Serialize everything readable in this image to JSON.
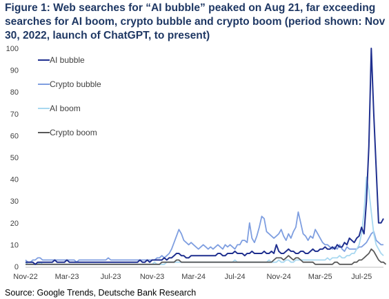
{
  "figure": {
    "title": "Figure 1: Web searches for “AI bubble” peaked on Aug 21, far exceeding searches for AI boom, crypto bubble and crypto boom (period shown: Nov 30, 2022, launch of ChatGPT, to present)",
    "source": "Source: Google Trends, Deutsche Bank Research"
  },
  "colors": {
    "ai_bubble": "#1f2f8f",
    "crypto_bubble": "#7e9ee0",
    "ai_boom": "#a8d8f0",
    "crypto_boom": "#595959",
    "axis": "#bfbfbf",
    "tick_text": "#404040"
  },
  "chart_data": {
    "type": "line",
    "title": "",
    "xlabel": "",
    "ylabel": "",
    "ylim": [
      0,
      100
    ],
    "yticks": [
      0,
      10,
      20,
      30,
      40,
      50,
      60,
      70,
      80,
      90,
      100
    ],
    "xtick_labels": [
      "Nov-22",
      "Mar-23",
      "Jul-23",
      "Nov-23",
      "Mar-24",
      "Jul-24",
      "Nov-24",
      "Mar-25",
      "Jul-25"
    ],
    "xtick_positions": [
      0,
      17,
      35,
      52,
      69,
      86,
      104,
      121,
      138
    ],
    "grid": false,
    "legend_placement": "top-left",
    "x_start": "2022-11-30",
    "x_step": "weekly",
    "series": [
      {
        "name": "AI bubble",
        "color_key": "ai_bubble",
        "values": [
          2,
          2,
          2,
          2,
          1,
          2,
          2,
          2,
          2,
          2,
          2,
          2,
          3,
          2,
          2,
          2,
          2,
          3,
          2,
          2,
          2,
          2,
          2,
          2,
          2,
          2,
          2,
          2,
          2,
          2,
          2,
          2,
          2,
          2,
          2,
          2,
          2,
          2,
          2,
          2,
          2,
          2,
          2,
          2,
          2,
          2,
          2,
          3,
          2,
          2,
          3,
          2,
          3,
          3,
          3,
          3,
          3,
          4,
          3,
          4,
          4,
          5,
          6,
          6,
          5,
          5,
          4,
          4,
          5,
          5,
          5,
          5,
          5,
          5,
          5,
          5,
          5,
          5,
          5,
          6,
          6,
          5,
          5,
          6,
          6,
          6,
          7,
          6,
          6,
          6,
          5,
          6,
          6,
          7,
          6,
          6,
          6,
          6,
          7,
          6,
          6,
          7,
          6,
          10,
          7,
          6,
          6,
          7,
          8,
          7,
          7,
          6,
          6,
          7,
          7,
          6,
          6,
          7,
          8,
          7,
          7,
          8,
          8,
          9,
          8,
          8,
          9,
          8,
          10,
          9,
          9,
          11,
          10,
          13,
          12,
          11,
          13,
          14,
          18,
          15,
          30,
          55,
          100,
          70,
          45,
          20,
          20,
          22
        ]
      },
      {
        "name": "Crypto bubble",
        "color_key": "crypto_bubble",
        "values": [
          3,
          2,
          2,
          3,
          3,
          4,
          4,
          3,
          3,
          3,
          3,
          3,
          3,
          3,
          3,
          3,
          3,
          3,
          3,
          3,
          3,
          2,
          3,
          3,
          3,
          3,
          3,
          3,
          3,
          3,
          3,
          3,
          3,
          3,
          4,
          3,
          3,
          3,
          3,
          3,
          3,
          3,
          3,
          3,
          3,
          3,
          3,
          3,
          3,
          3,
          3,
          3,
          3,
          3,
          4,
          4,
          5,
          4,
          5,
          6,
          8,
          11,
          14,
          17,
          15,
          12,
          11,
          10,
          11,
          10,
          9,
          8,
          9,
          10,
          9,
          8,
          9,
          8,
          9,
          10,
          9,
          8,
          10,
          9,
          10,
          9,
          8,
          10,
          10,
          12,
          12,
          11,
          20,
          13,
          11,
          14,
          18,
          23,
          22,
          16,
          15,
          14,
          13,
          14,
          15,
          17,
          14,
          12,
          15,
          13,
          16,
          18,
          25,
          20,
          15,
          14,
          12,
          14,
          13,
          17,
          15,
          13,
          11,
          10,
          10,
          9,
          8,
          9,
          8,
          10,
          8,
          7,
          9,
          8,
          8,
          8,
          8,
          9,
          9,
          10,
          11,
          13,
          15,
          16,
          12,
          11,
          10,
          10
        ]
      },
      {
        "name": "AI boom",
        "color_key": "ai_boom",
        "values": [
          2,
          1,
          1,
          1,
          1,
          1,
          2,
          1,
          1,
          1,
          1,
          1,
          1,
          1,
          1,
          1,
          1,
          1,
          1,
          1,
          1,
          1,
          1,
          1,
          1,
          1,
          1,
          1,
          1,
          1,
          1,
          1,
          1,
          1,
          1,
          1,
          1,
          1,
          1,
          1,
          1,
          1,
          1,
          1,
          1,
          1,
          1,
          1,
          1,
          1,
          1,
          1,
          1,
          2,
          1,
          1,
          1,
          1,
          2,
          2,
          2,
          2,
          2,
          2,
          2,
          2,
          2,
          2,
          2,
          2,
          2,
          2,
          2,
          2,
          2,
          2,
          2,
          2,
          2,
          2,
          2,
          2,
          2,
          2,
          2,
          2,
          3,
          2,
          2,
          2,
          2,
          2,
          2,
          2,
          2,
          2,
          2,
          2,
          2,
          2,
          3,
          2,
          2,
          2,
          3,
          2,
          2,
          3,
          3,
          2,
          2,
          3,
          3,
          3,
          3,
          3,
          3,
          3,
          3,
          3,
          3,
          3,
          3,
          3,
          4,
          3,
          4,
          4,
          4,
          5,
          4,
          4,
          5,
          5,
          6,
          6,
          8,
          10,
          15,
          25,
          41,
          35,
          25,
          15,
          10,
          8,
          6,
          5
        ]
      },
      {
        "name": "Crypto boom",
        "color_key": "crypto_boom",
        "values": [
          1,
          1,
          1,
          1,
          1,
          1,
          1,
          1,
          1,
          1,
          1,
          1,
          1,
          1,
          1,
          1,
          1,
          1,
          1,
          1,
          1,
          1,
          1,
          1,
          1,
          1,
          1,
          1,
          1,
          1,
          1,
          1,
          1,
          1,
          1,
          1,
          1,
          1,
          1,
          1,
          1,
          1,
          1,
          1,
          1,
          1,
          1,
          1,
          1,
          1,
          1,
          1,
          1,
          1,
          1,
          1,
          2,
          2,
          2,
          2,
          2,
          2,
          3,
          3,
          2,
          2,
          2,
          2,
          2,
          2,
          2,
          2,
          2,
          2,
          2,
          2,
          2,
          2,
          2,
          2,
          2,
          2,
          2,
          2,
          2,
          2,
          2,
          2,
          2,
          2,
          2,
          2,
          2,
          2,
          2,
          2,
          2,
          2,
          2,
          2,
          2,
          2,
          3,
          4,
          4,
          4,
          3,
          4,
          5,
          4,
          3,
          4,
          4,
          3,
          2,
          2,
          2,
          2,
          2,
          1,
          1,
          1,
          1,
          1,
          1,
          1,
          1,
          2,
          2,
          1,
          1,
          1,
          1,
          1,
          1,
          2,
          2,
          3,
          3,
          4,
          5,
          6,
          8,
          7,
          5,
          3,
          2,
          2,
          1
        ]
      }
    ]
  }
}
